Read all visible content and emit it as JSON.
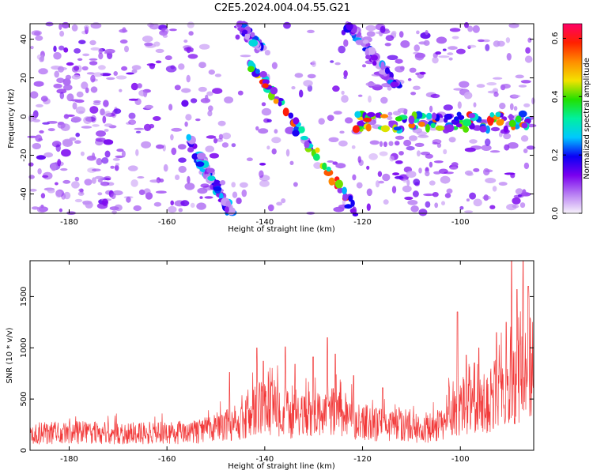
{
  "figure_title": "C2E5.2024.004.04.55.G21",
  "colors": {
    "snr_line": "#f23a3a",
    "axis": "#000000",
    "colorbar_stops": [
      "#f7f2fb",
      "#b87ff3",
      "#7a00ef",
      "#0a00f5",
      "#00c8ff",
      "#00f0a0",
      "#22e000",
      "#f3e200",
      "#ff8c00",
      "#ff2000",
      "#ff0066"
    ]
  },
  "chart_data": [
    {
      "type": "heatmap",
      "title": "C2E5.2024.004.04.55.G21",
      "xlabel": "Height of straight line (km)",
      "ylabel": "Frequency (Hz)",
      "xlim": [
        -188,
        -85
      ],
      "ylim": [
        -50,
        48
      ],
      "xticks": [
        -180,
        -160,
        -140,
        -120,
        -100
      ],
      "yticks": [
        -40,
        -20,
        0,
        20,
        40
      ],
      "colorbar": {
        "label": "Normalized spectral amplitude",
        "range": [
          0.0,
          0.65
        ],
        "ticks": [
          0.0,
          0.2,
          0.4,
          0.6
        ]
      },
      "features": [
        {
          "kind": "ridge",
          "x": [
            -143,
            -121
          ],
          "y": [
            28,
            -50
          ],
          "peak_amplitude": 0.62
        },
        {
          "kind": "ridge",
          "x": [
            -156,
            -147
          ],
          "y": [
            -10,
            -50
          ],
          "peak_amplitude": 0.3
        },
        {
          "kind": "ridge",
          "x": [
            -123,
            -113
          ],
          "y": [
            48,
            15
          ],
          "peak_amplitude": 0.25
        },
        {
          "kind": "ridge",
          "x": [
            -145,
            -141
          ],
          "y": [
            48,
            35
          ],
          "peak_amplitude": 0.3
        },
        {
          "kind": "band",
          "x": [
            -122,
            -86
          ],
          "y": [
            -3,
            -3
          ],
          "peak_amplitude": 0.65
        }
      ]
    },
    {
      "type": "line",
      "xlabel": "Height of straight line (km)",
      "ylabel": "SNR (10 * v/v)",
      "xlim": [
        -188,
        -85
      ],
      "ylim": [
        0,
        1850
      ],
      "xticks": [
        -180,
        -160,
        -140,
        -120,
        -100
      ],
      "yticks": [
        0,
        500,
        1000,
        1500
      ],
      "x": [
        -188,
        -185,
        -180,
        -175,
        -170,
        -165,
        -160,
        -155,
        -150,
        -147,
        -144,
        -142,
        -141,
        -140,
        -138,
        -136,
        -134,
        -132,
        -130,
        -128,
        -126,
        -124,
        -122,
        -120,
        -118,
        -115,
        -112,
        -110,
        -108,
        -105,
        -103,
        -101,
        -99,
        -97,
        -95,
        -93,
        -91,
        -89,
        -87,
        -85
      ],
      "y": [
        150,
        170,
        170,
        175,
        165,
        170,
        170,
        175,
        210,
        260,
        320,
        380,
        460,
        420,
        400,
        380,
        300,
        330,
        360,
        340,
        380,
        330,
        300,
        280,
        260,
        250,
        240,
        230,
        200,
        230,
        300,
        380,
        450,
        400,
        460,
        550,
        620,
        700,
        800,
        780
      ],
      "peaks": [
        {
          "x": -147.2,
          "y": 760
        },
        {
          "x": -141.6,
          "y": 1000
        },
        {
          "x": -140.3,
          "y": 870
        },
        {
          "x": -135.8,
          "y": 1010
        },
        {
          "x": -133.8,
          "y": 840
        },
        {
          "x": -130.1,
          "y": 910
        },
        {
          "x": -127.2,
          "y": 1100
        },
        {
          "x": -125.6,
          "y": 940
        },
        {
          "x": -121.8,
          "y": 730
        },
        {
          "x": -115.9,
          "y": 610
        },
        {
          "x": -100.6,
          "y": 1350
        },
        {
          "x": -98.8,
          "y": 930
        },
        {
          "x": -96.2,
          "y": 1000
        },
        {
          "x": -92.6,
          "y": 1150
        },
        {
          "x": -90.6,
          "y": 1250
        },
        {
          "x": -89.5,
          "y": 1850
        },
        {
          "x": -88.4,
          "y": 1570
        },
        {
          "x": -87.2,
          "y": 1850
        },
        {
          "x": -86.1,
          "y": 1600
        }
      ]
    }
  ]
}
